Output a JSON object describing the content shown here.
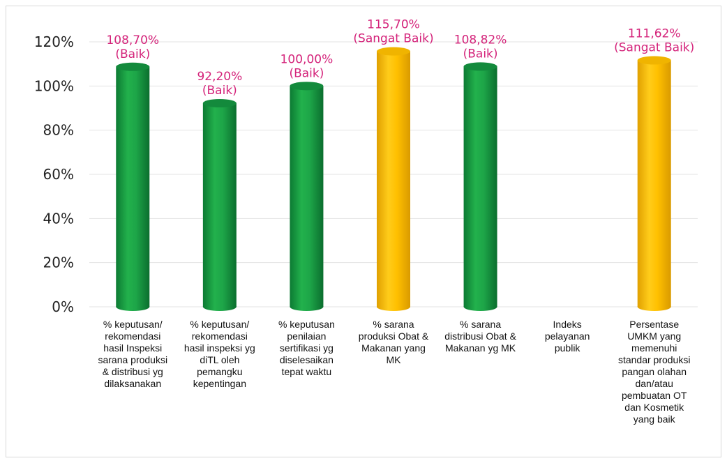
{
  "chart_data": {
    "type": "bar",
    "categories": [
      [
        "% keputusan/",
        "rekomendasi",
        "hasil Inspeksi",
        "sarana produksi",
        "& distribusi yg",
        "dilaksanakan"
      ],
      [
        "% keputusan/",
        "rekomendasi",
        "hasil inspeksi yg",
        "diTL oleh",
        "pemangku",
        "kepentingan"
      ],
      [
        "% keputusan",
        "penilaian",
        "sertifikasi yg",
        "diselesaikan",
        "tepat waktu"
      ],
      [
        "% sarana",
        "produksi Obat &",
        "Makanan yang",
        "MK"
      ],
      [
        "% sarana",
        "distribusi Obat &",
        "Makanan yg MK"
      ],
      [
        "Indeks",
        "pelayanan",
        "publik"
      ],
      [
        "Persentase",
        "UMKM yang",
        "memenuhi",
        "standar produksi",
        "pangan olahan",
        "dan/atau",
        "pembuatan OT",
        "dan Kosmetik",
        "yang baik"
      ]
    ],
    "values": [
      108.7,
      92.2,
      100.0,
      115.7,
      108.82,
      null,
      111.62
    ],
    "value_labels": [
      "108,70%",
      "92,20%",
      "100,00%",
      "115,70%",
      "108,82%",
      "",
      "111,62%"
    ],
    "rating_labels": [
      "(Baik)",
      "(Baik)",
      "(Baik)",
      "(Sangat Baik)",
      "(Baik)",
      "",
      "(Sangat Baik)"
    ],
    "bar_colors": [
      "#1aa34a",
      "#1aa34a",
      "#1aa34a",
      "#ffc000",
      "#1aa34a",
      "",
      "#ffc000"
    ],
    "yticks": [
      "0%",
      "20%",
      "40%",
      "60%",
      "80%",
      "100%",
      "120%"
    ],
    "ylim": [
      0,
      120
    ],
    "grid": true,
    "label_color": "#d4237a",
    "title": "",
    "xlabel": "",
    "ylabel": ""
  }
}
